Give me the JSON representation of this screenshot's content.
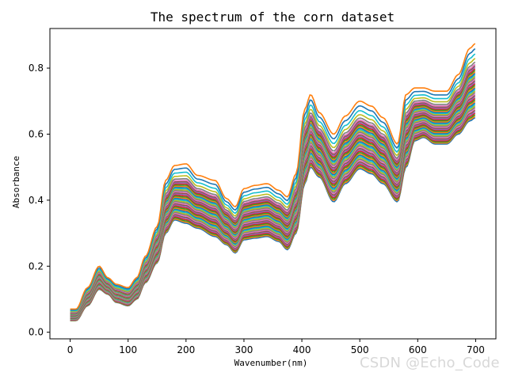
{
  "chart_data": {
    "type": "line",
    "title": "The spectrum of the corn dataset",
    "xlabel": "Wavenumber(nm)",
    "ylabel": "Absorbance",
    "xlim": [
      -35,
      735
    ],
    "ylim": [
      -0.02,
      0.92
    ],
    "xticks": [
      0,
      100,
      200,
      300,
      400,
      500,
      600,
      700
    ],
    "yticks": [
      0.0,
      0.2,
      0.4,
      0.6,
      0.8
    ],
    "ytick_labels": [
      "0.0",
      "0.2",
      "0.4",
      "0.6",
      "0.8"
    ],
    "grid": false,
    "legend": "none",
    "x_knots": [
      0,
      10,
      30,
      50,
      65,
      80,
      100,
      115,
      130,
      150,
      165,
      180,
      200,
      220,
      250,
      270,
      285,
      300,
      320,
      340,
      360,
      375,
      390,
      405,
      415,
      430,
      455,
      475,
      500,
      520,
      540,
      565,
      580,
      595,
      610,
      630,
      650,
      670,
      690,
      700
    ],
    "series_shape_low": [
      0.035,
      0.035,
      0.08,
      0.13,
      0.115,
      0.09,
      0.08,
      0.1,
      0.15,
      0.21,
      0.3,
      0.34,
      0.33,
      0.315,
      0.29,
      0.265,
      0.24,
      0.28,
      0.285,
      0.29,
      0.275,
      0.25,
      0.3,
      0.45,
      0.5,
      0.47,
      0.395,
      0.45,
      0.495,
      0.48,
      0.45,
      0.395,
      0.5,
      0.58,
      0.59,
      0.57,
      0.57,
      0.6,
      0.64,
      0.65
    ],
    "series_shape_high": [
      0.07,
      0.07,
      0.135,
      0.2,
      0.165,
      0.145,
      0.135,
      0.165,
      0.23,
      0.32,
      0.46,
      0.505,
      0.51,
      0.475,
      0.46,
      0.405,
      0.38,
      0.435,
      0.445,
      0.45,
      0.43,
      0.41,
      0.48,
      0.675,
      0.72,
      0.665,
      0.6,
      0.655,
      0.7,
      0.685,
      0.65,
      0.57,
      0.72,
      0.74,
      0.74,
      0.73,
      0.73,
      0.78,
      0.86,
      0.875
    ],
    "series_levels": [
      0.0,
      0.02,
      0.04,
      0.06,
      0.08,
      0.1,
      0.12,
      0.14,
      0.16,
      0.18,
      0.2,
      0.22,
      0.24,
      0.26,
      0.28,
      0.3,
      0.32,
      0.34,
      0.36,
      0.38,
      0.4,
      0.42,
      0.44,
      0.46,
      0.48,
      0.5,
      0.52,
      0.54,
      0.56,
      0.58,
      0.6,
      0.62,
      0.64,
      0.66,
      0.68,
      0.7,
      0.72,
      0.75,
      0.8,
      0.86,
      0.93,
      1.0
    ],
    "series_colors": [
      "#1f77b4",
      "#ff7f0e",
      "#2ca02c",
      "#d62728",
      "#9467bd",
      "#8c564b",
      "#e377c2",
      "#7f7f7f",
      "#bcbd22",
      "#17becf"
    ]
  },
  "watermark": "CSDN @Echo_Code"
}
